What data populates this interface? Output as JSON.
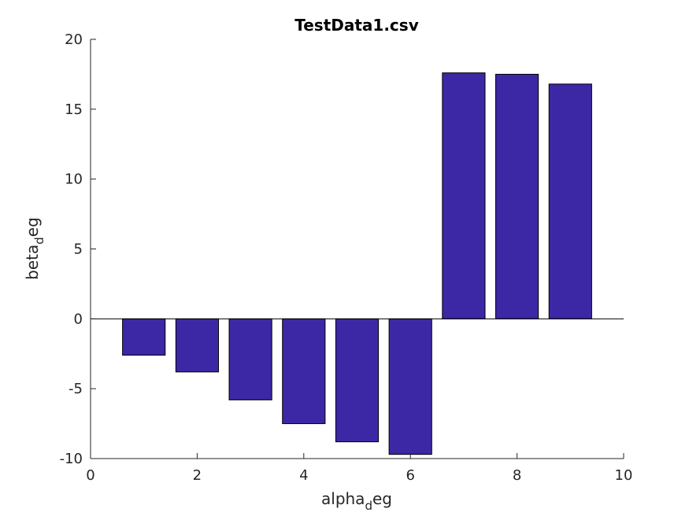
{
  "chart_data": {
    "type": "bar",
    "title": "TestData1.csv",
    "xlabel": {
      "main": "alpha",
      "sub": "d",
      "tail": "eg"
    },
    "ylabel": {
      "main": "beta",
      "sub": "d",
      "tail": "eg"
    },
    "x": [
      1,
      2,
      3,
      4,
      5,
      6,
      7,
      8,
      9
    ],
    "values": [
      -2.6,
      -3.8,
      -5.8,
      -7.5,
      -8.8,
      -9.7,
      17.6,
      17.5,
      16.8
    ],
    "xlim": [
      0,
      10
    ],
    "ylim": [
      -10,
      20
    ],
    "xticks": [
      0,
      2,
      4,
      6,
      8,
      10
    ],
    "yticks": [
      -10,
      -5,
      0,
      5,
      10,
      15,
      20
    ],
    "bar_color": "#3c28a5",
    "edge_color": "#000000",
    "grid": false
  }
}
